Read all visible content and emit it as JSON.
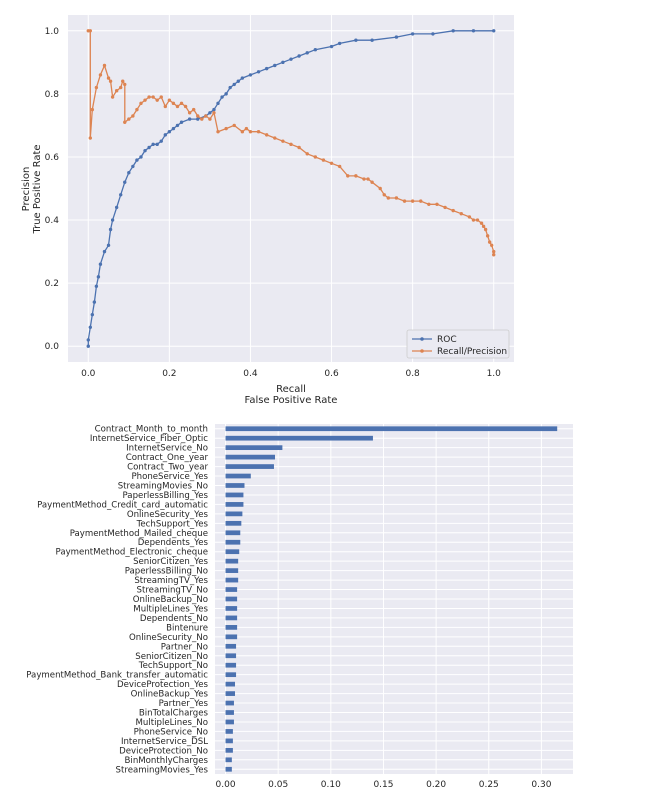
{
  "chart_data": [
    {
      "type": "line",
      "xlabel": "Recall",
      "xlabel2": "False Positive Rate",
      "ylabel": "Precision",
      "ylabel2": "True Positive Rate",
      "xlim": [
        -0.05,
        1.05
      ],
      "ylim": [
        -0.05,
        1.05
      ],
      "xticks": [
        0.0,
        0.2,
        0.4,
        0.6,
        0.8,
        1.0
      ],
      "xtick_labels": [
        "0.0",
        "0.2",
        "0.4",
        "0.6",
        "0.8",
        "1.0"
      ],
      "yticks": [
        0.0,
        0.2,
        0.4,
        0.6,
        0.8,
        1.0
      ],
      "ytick_labels": [
        "0.0",
        "0.2",
        "0.4",
        "0.6",
        "0.8",
        "1.0"
      ],
      "grid": true,
      "legend_position": "lower-right",
      "series": [
        {
          "name": "ROC",
          "color": "#4c72b0",
          "x": [
            0.0,
            0.0,
            0.005,
            0.01,
            0.015,
            0.02,
            0.025,
            0.03,
            0.04,
            0.05,
            0.055,
            0.06,
            0.07,
            0.08,
            0.09,
            0.1,
            0.11,
            0.12,
            0.13,
            0.14,
            0.15,
            0.16,
            0.17,
            0.18,
            0.19,
            0.2,
            0.21,
            0.22,
            0.23,
            0.25,
            0.27,
            0.29,
            0.3,
            0.31,
            0.32,
            0.33,
            0.34,
            0.35,
            0.36,
            0.37,
            0.38,
            0.4,
            0.42,
            0.44,
            0.46,
            0.48,
            0.5,
            0.52,
            0.54,
            0.56,
            0.6,
            0.62,
            0.66,
            0.7,
            0.76,
            0.8,
            0.85,
            0.9,
            0.95,
            1.0
          ],
          "y": [
            0.0,
            0.02,
            0.06,
            0.1,
            0.14,
            0.19,
            0.22,
            0.26,
            0.3,
            0.32,
            0.37,
            0.4,
            0.44,
            0.48,
            0.52,
            0.55,
            0.57,
            0.59,
            0.6,
            0.62,
            0.63,
            0.64,
            0.64,
            0.65,
            0.67,
            0.68,
            0.69,
            0.7,
            0.71,
            0.72,
            0.72,
            0.73,
            0.74,
            0.75,
            0.77,
            0.79,
            0.8,
            0.82,
            0.83,
            0.84,
            0.85,
            0.86,
            0.87,
            0.88,
            0.89,
            0.9,
            0.91,
            0.92,
            0.93,
            0.94,
            0.95,
            0.96,
            0.97,
            0.97,
            0.98,
            0.99,
            0.99,
            1.0,
            1.0,
            1.0
          ]
        },
        {
          "name": "Recall/Precision",
          "color": "#dd8452",
          "x": [
            1.0,
            1.0,
            0.995,
            0.99,
            0.985,
            0.98,
            0.975,
            0.97,
            0.96,
            0.95,
            0.94,
            0.92,
            0.9,
            0.88,
            0.86,
            0.84,
            0.82,
            0.8,
            0.78,
            0.76,
            0.74,
            0.73,
            0.72,
            0.7,
            0.69,
            0.68,
            0.66,
            0.64,
            0.62,
            0.6,
            0.58,
            0.56,
            0.54,
            0.52,
            0.5,
            0.48,
            0.46,
            0.44,
            0.42,
            0.4,
            0.39,
            0.38,
            0.36,
            0.34,
            0.32,
            0.31,
            0.3,
            0.29,
            0.28,
            0.27,
            0.26,
            0.25,
            0.24,
            0.23,
            0.22,
            0.21,
            0.2,
            0.19,
            0.18,
            0.17,
            0.16,
            0.15,
            0.14,
            0.13,
            0.12,
            0.11,
            0.1,
            0.09,
            0.09,
            0.085,
            0.08,
            0.07,
            0.06,
            0.055,
            0.05,
            0.04,
            0.03,
            0.02,
            0.01,
            0.005,
            0.005,
            0.0
          ],
          "y": [
            0.29,
            0.3,
            0.32,
            0.33,
            0.35,
            0.37,
            0.38,
            0.39,
            0.4,
            0.4,
            0.41,
            0.42,
            0.43,
            0.44,
            0.45,
            0.45,
            0.46,
            0.46,
            0.46,
            0.47,
            0.47,
            0.48,
            0.5,
            0.52,
            0.53,
            0.53,
            0.54,
            0.54,
            0.57,
            0.58,
            0.59,
            0.6,
            0.61,
            0.63,
            0.64,
            0.65,
            0.66,
            0.67,
            0.68,
            0.68,
            0.69,
            0.68,
            0.7,
            0.69,
            0.68,
            0.74,
            0.72,
            0.73,
            0.72,
            0.73,
            0.75,
            0.74,
            0.76,
            0.77,
            0.76,
            0.77,
            0.78,
            0.76,
            0.79,
            0.78,
            0.79,
            0.79,
            0.78,
            0.77,
            0.75,
            0.73,
            0.72,
            0.71,
            0.83,
            0.84,
            0.82,
            0.81,
            0.79,
            0.84,
            0.85,
            0.89,
            0.86,
            0.82,
            0.75,
            0.66,
            1.0,
            1.0
          ]
        }
      ]
    },
    {
      "type": "bar",
      "orientation": "horizontal",
      "color": "#4c72b0",
      "xlim": [
        -0.01,
        0.33
      ],
      "xticks": [
        0.0,
        0.05,
        0.1,
        0.15,
        0.2,
        0.25,
        0.3
      ],
      "xtick_labels": [
        "0.00",
        "0.05",
        "0.10",
        "0.15",
        "0.20",
        "0.25",
        "0.30"
      ],
      "grid": true,
      "categories": [
        "Contract_Month_to_month",
        "InternetService_Fiber_Optic",
        "InternetService_No",
        "Contract_One_year",
        "Contract_Two_year",
        "PhoneService_Yes",
        "StreamingMovies_No",
        "PaperlessBilling_Yes",
        "PaymentMethod_Credit_card_automatic",
        "OnlineSecurity_Yes",
        "TechSupport_Yes",
        "PaymentMethod_Mailed_cheque",
        "Dependents_Yes",
        "PaymentMethod_Electronic_cheque",
        "SeniorCitizen_Yes",
        "PaperlessBilling_No",
        "StreamingTV_Yes",
        "StreamingTV_No",
        "OnlineBackup_No",
        "MultipleLines_Yes",
        "Dependents_No",
        "Bintenure",
        "OnlineSecurity_No",
        "Partner_No",
        "SeniorCitizen_No",
        "TechSupport_No",
        "PaymentMethod_Bank_transfer_automatic",
        "DeviceProtection_Yes",
        "OnlineBackup_Yes",
        "Partner_Yes",
        "BinTotalCharges",
        "MultipleLines_No",
        "PhoneService_No",
        "InternetService_DSL",
        "DeviceProtection_No",
        "BinMonthlyCharges",
        "StreamingMovies_Yes"
      ],
      "values": [
        0.315,
        0.14,
        0.054,
        0.047,
        0.046,
        0.024,
        0.018,
        0.017,
        0.017,
        0.016,
        0.015,
        0.014,
        0.014,
        0.013,
        0.012,
        0.012,
        0.012,
        0.011,
        0.011,
        0.011,
        0.011,
        0.011,
        0.011,
        0.01,
        0.01,
        0.01,
        0.01,
        0.009,
        0.009,
        0.008,
        0.008,
        0.008,
        0.007,
        0.007,
        0.007,
        0.006,
        0.006
      ]
    }
  ]
}
